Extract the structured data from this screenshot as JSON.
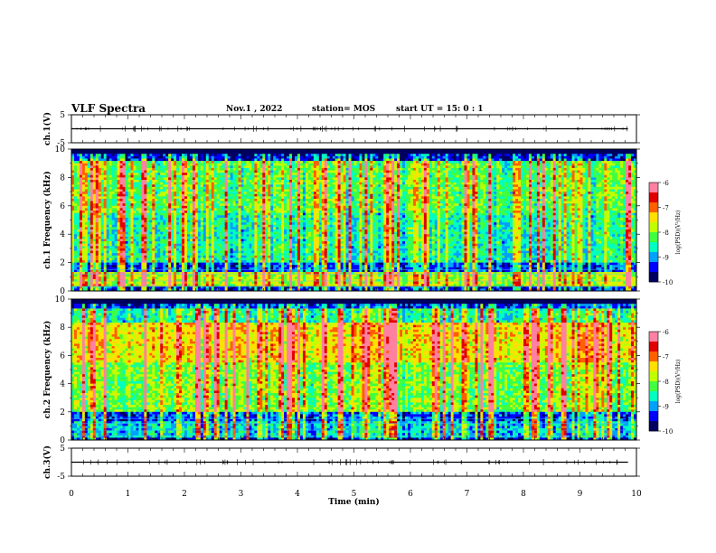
{
  "header": {
    "title": "VLF Spectra",
    "date": "Nov.1 , 2022",
    "station": "station= MOS",
    "start": "start UT = 15: 0 : 1"
  },
  "chart_data": [
    {
      "type": "line",
      "ylabel": "ch.1(V)",
      "ylim": [
        -5,
        5
      ],
      "yticks": [
        "5",
        "-5"
      ],
      "series": [
        {
          "x": [
            0,
            9.85
          ],
          "y": [
            0,
            0
          ]
        }
      ]
    },
    {
      "type": "heatmap",
      "ylabel": "ch.1 Frequency (kHz)",
      "ylim": [
        0,
        10
      ],
      "yticks": [
        "0",
        "2",
        "4",
        "6",
        "8",
        "10"
      ],
      "colorbar": {
        "label": "log(PSD)(V²/Hz)",
        "ticks": [
          "-6",
          "-7",
          "-8",
          "-9",
          "-10"
        ],
        "range": [
          -10,
          -6
        ]
      }
    },
    {
      "type": "heatmap",
      "ylabel": "ch.2 Frequency (kHz)",
      "ylim": [
        0,
        10
      ],
      "yticks": [
        "0",
        "2",
        "4",
        "6",
        "8",
        "10"
      ],
      "colorbar": {
        "label": "log(PSD)(V²/Hz)",
        "ticks": [
          "-6",
          "-7",
          "-8",
          "-9",
          "-10"
        ],
        "range": [
          -10,
          -6
        ]
      }
    },
    {
      "type": "line",
      "ylabel": "ch.3(V)",
      "ylim": [
        -5,
        5
      ],
      "yticks": [
        "5",
        "-5"
      ],
      "series": [
        {
          "x": [
            0,
            9.85
          ],
          "y": [
            0,
            0
          ]
        }
      ]
    }
  ],
  "xaxis": {
    "xlabel": "Time (min)",
    "xlim": [
      0,
      10
    ],
    "xticks": [
      "0",
      "1",
      "2",
      "3",
      "4",
      "5",
      "6",
      "7",
      "8",
      "9",
      "10"
    ]
  },
  "colormap": [
    "#000060",
    "#0000ff",
    "#00a0ff",
    "#00ffc0",
    "#40ff40",
    "#c0ff00",
    "#ffe000",
    "#ff6000",
    "#e00000",
    "#ff80a0",
    "#ffffff"
  ]
}
